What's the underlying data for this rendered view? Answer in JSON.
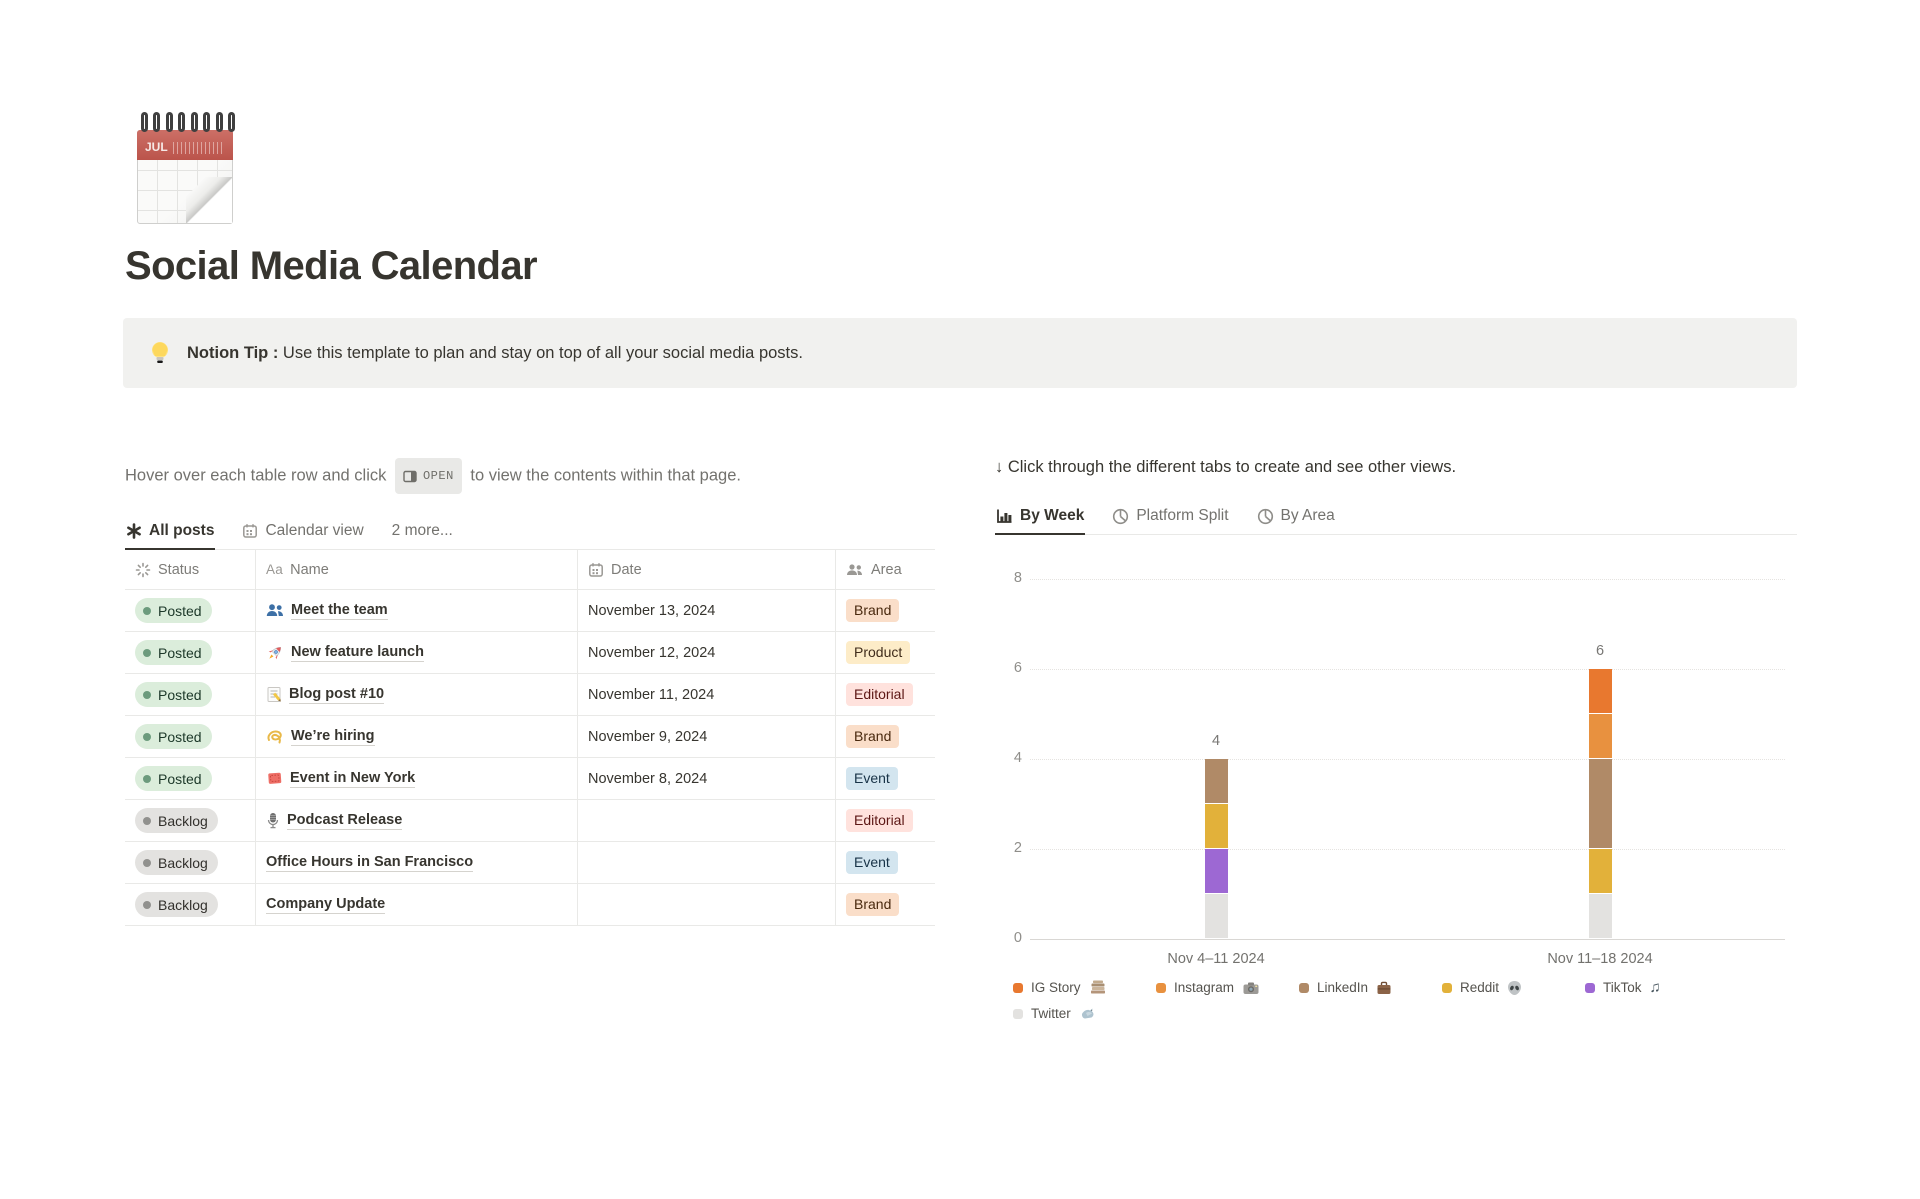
{
  "page": {
    "title": "Social Media Calendar",
    "icon": "spiral-calendar-icon",
    "icon_month": "JUL"
  },
  "callout": {
    "icon": "light-bulb-icon",
    "bold": "Notion Tip :",
    "text": " Use this template to plan and stay on top of all your social media posts."
  },
  "left": {
    "instruction_before": "Hover over each table row and click",
    "open_badge": "OPEN",
    "instruction_after": "to view the contents within that page.",
    "tabs": [
      {
        "label": "All posts",
        "icon": "asterisk-icon",
        "active": true
      },
      {
        "label": "Calendar view",
        "icon": "calendar-icon",
        "active": false
      },
      {
        "label": "2 more...",
        "icon": null,
        "active": false
      }
    ],
    "table": {
      "columns": [
        {
          "label": "Status",
          "icon": "status-spinner-icon",
          "width": "c-status"
        },
        {
          "label": "Name",
          "icon": "aa-icon",
          "width": "c-name"
        },
        {
          "label": "Date",
          "icon": "calendar-icon",
          "width": "c-date"
        },
        {
          "label": "Area",
          "icon": "people-icon",
          "width": "c-area"
        }
      ],
      "rows": [
        {
          "status": "Posted",
          "status_type": "green",
          "icon": "busts-icon",
          "emoji": "👥",
          "name": "Meet the team",
          "date": "November 13, 2024",
          "area": "Brand",
          "area_color": "orange"
        },
        {
          "status": "Posted",
          "status_type": "green",
          "icon": "rocket-icon",
          "emoji": "🚀",
          "name": "New feature launch",
          "date": "November 12, 2024",
          "area": "Product",
          "area_color": "yellow"
        },
        {
          "status": "Posted",
          "status_type": "green",
          "icon": "memo-icon",
          "emoji": "📝",
          "name": "Blog post #10",
          "date": "November 11, 2024",
          "area": "Editorial",
          "area_color": "red"
        },
        {
          "status": "Posted",
          "status_type": "green",
          "icon": "curly-loop-icon",
          "emoji": "➰",
          "name": "We’re hiring",
          "date": "November 9, 2024",
          "area": "Brand",
          "area_color": "orange"
        },
        {
          "status": "Posted",
          "status_type": "green",
          "icon": "tickets-icon",
          "emoji": "🎟️",
          "name": "Event in New York",
          "date": "November 8, 2024",
          "area": "Event",
          "area_color": "blue"
        },
        {
          "status": "Backlog",
          "status_type": "gray",
          "icon": "microphone-icon",
          "emoji": "🎙️",
          "name": "Podcast Release",
          "date": "",
          "area": "Editorial",
          "area_color": "red"
        },
        {
          "status": "Backlog",
          "status_type": "gray",
          "icon": null,
          "emoji": "",
          "name": "Office Hours in San Francisco",
          "date": "",
          "area": "Event",
          "area_color": "blue"
        },
        {
          "status": "Backlog",
          "status_type": "gray",
          "icon": null,
          "emoji": "",
          "name": "Company Update",
          "date": "",
          "area": "Brand",
          "area_color": "orange"
        }
      ]
    }
  },
  "right": {
    "instruction": "↓ Click through the different tabs to create and see other views.",
    "tabs": [
      {
        "label": "By Week",
        "icon": "bar-chart-icon",
        "active": true
      },
      {
        "label": "Platform Split",
        "icon": "pie-chart-icon",
        "active": false
      },
      {
        "label": "By Area",
        "icon": "pie-chart-icon",
        "active": false
      }
    ]
  },
  "chart_data": {
    "type": "bar",
    "stacked": true,
    "title": "",
    "xlabel": "",
    "ylabel": "",
    "categories": [
      "Nov 4–11 2024",
      "Nov 11–18 2024"
    ],
    "series": [
      {
        "name": "IG Story",
        "emoji": "📚",
        "icon": "books-icon",
        "color": "#E8782F",
        "values": [
          0,
          1
        ]
      },
      {
        "name": "Instagram",
        "emoji": "📸",
        "icon": "camera-icon",
        "color": "#E8913F",
        "values": [
          0,
          1
        ]
      },
      {
        "name": "LinkedIn",
        "emoji": "💼",
        "icon": "briefcase-icon",
        "color": "#B08A67",
        "values": [
          1,
          2
        ]
      },
      {
        "name": "Reddit",
        "emoji": "👽",
        "icon": "alien-icon",
        "color": "#E2B13A",
        "values": [
          1,
          1
        ]
      },
      {
        "name": "TikTok",
        "emoji": "🎵",
        "icon": "music-icon",
        "color": "#9D68D3",
        "values": [
          1,
          0
        ]
      },
      {
        "name": "Twitter",
        "emoji": "🕊️",
        "icon": "dove-icon",
        "color": "#E3E2E0",
        "values": [
          1,
          1
        ]
      }
    ],
    "stack_order_bottom_to_top": [
      "Twitter",
      "TikTok",
      "Reddit",
      "LinkedIn",
      "Instagram",
      "IG Story"
    ],
    "bar_totals": [
      4,
      6
    ],
    "bar_centers_pct": [
      24.8,
      76
    ],
    "ylim": [
      0,
      8
    ],
    "yticks": [
      8,
      6,
      4,
      2,
      0
    ],
    "grid": "horizontal-dotted",
    "legend_position": "bottom"
  },
  "colors": {
    "accent_underline": "#37352F",
    "callout_bg": "#F1F1EF",
    "table_border": "#E9E9E7",
    "muted_text": "#73726E",
    "status_green_bg": "#DBEDDB",
    "status_gray_bg": "#E3E2E0",
    "tag_orange_bg": "#FADEC9",
    "tag_yellow_bg": "#FDECC8",
    "tag_red_bg": "#FFE2DD",
    "tag_blue_bg": "#D3E5EF"
  }
}
